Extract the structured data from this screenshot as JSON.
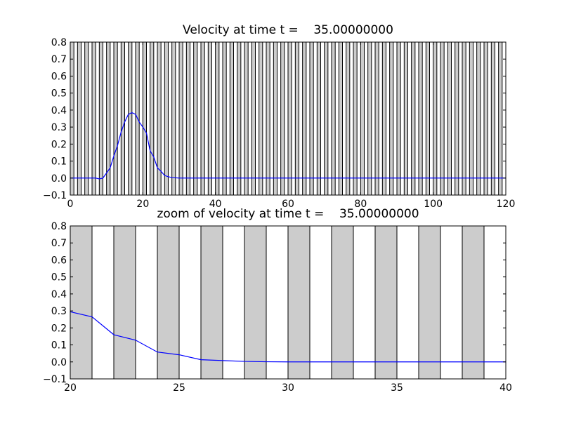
{
  "figure": {
    "background": "#ffffff",
    "line_color": "#0000ff",
    "band_fill": "#cccccc",
    "band_stroke": "#000000"
  },
  "chart_data": [
    {
      "type": "line",
      "title": "Velocity at time t =    35.00000000",
      "xlabel": "",
      "ylabel": "",
      "xlim": [
        0,
        120
      ],
      "ylim": [
        -0.1,
        0.8
      ],
      "xticks": [
        0,
        20,
        40,
        60,
        80,
        100,
        120
      ],
      "xtick_labels": [
        "0",
        "20",
        "40",
        "60",
        "80",
        "100",
        "120"
      ],
      "yticks": [
        -0.1,
        0.0,
        0.1,
        0.2,
        0.3,
        0.4,
        0.5,
        0.6,
        0.7,
        0.8
      ],
      "ytick_labels": [
        "−0.1",
        "0.0",
        "0.1",
        "0.2",
        "0.3",
        "0.4",
        "0.5",
        "0.6",
        "0.7",
        "0.8"
      ],
      "grid": false,
      "shaded_cells": {
        "start": 0,
        "end": 120,
        "width": 1,
        "step": 2
      },
      "series": [
        {
          "color": "#0000ff",
          "x": [
            0,
            2,
            4,
            6,
            7,
            8,
            9,
            10,
            11,
            12,
            13,
            14,
            15,
            16,
            17,
            18,
            19,
            20,
            21,
            22,
            23,
            24,
            25,
            26,
            27,
            28,
            30,
            40,
            60,
            80,
            100,
            120
          ],
          "y": [
            0.0,
            0.0,
            0.0,
            0.0,
            0.0,
            -0.005,
            0.0,
            0.03,
            0.06,
            0.13,
            0.19,
            0.27,
            0.33,
            0.375,
            0.385,
            0.375,
            0.33,
            0.3,
            0.265,
            0.16,
            0.125,
            0.06,
            0.04,
            0.015,
            0.008,
            0.003,
            0.0,
            0.0,
            0.0,
            0.0,
            0.0,
            0.0
          ]
        }
      ]
    },
    {
      "type": "line",
      "title": "zoom of velocity at time t =    35.00000000",
      "xlabel": "",
      "ylabel": "",
      "xlim": [
        20,
        40
      ],
      "ylim": [
        -0.1,
        0.8
      ],
      "xticks": [
        20,
        25,
        30,
        35,
        40
      ],
      "xtick_labels": [
        "20",
        "25",
        "30",
        "35",
        "40"
      ],
      "yticks": [
        -0.1,
        0.0,
        0.1,
        0.2,
        0.3,
        0.4,
        0.5,
        0.6,
        0.7,
        0.8
      ],
      "ytick_labels": [
        "−0.1",
        "0.0",
        "0.1",
        "0.2",
        "0.3",
        "0.4",
        "0.5",
        "0.6",
        "0.7",
        "0.8"
      ],
      "grid": false,
      "shaded_cells": {
        "start": 20,
        "end": 40,
        "width": 1,
        "step": 2
      },
      "series": [
        {
          "color": "#0000ff",
          "x": [
            20,
            21,
            22,
            23,
            24,
            25,
            26,
            27,
            28,
            29,
            30,
            31,
            32,
            33,
            34,
            35,
            36,
            37,
            38,
            39,
            40
          ],
          "y": [
            0.295,
            0.265,
            0.16,
            0.128,
            0.058,
            0.042,
            0.013,
            0.008,
            0.003,
            0.001,
            0.0,
            0.0,
            0.0,
            0.0,
            0.0,
            0.0,
            0.0,
            0.0,
            0.0,
            0.0,
            0.0
          ]
        }
      ]
    }
  ]
}
